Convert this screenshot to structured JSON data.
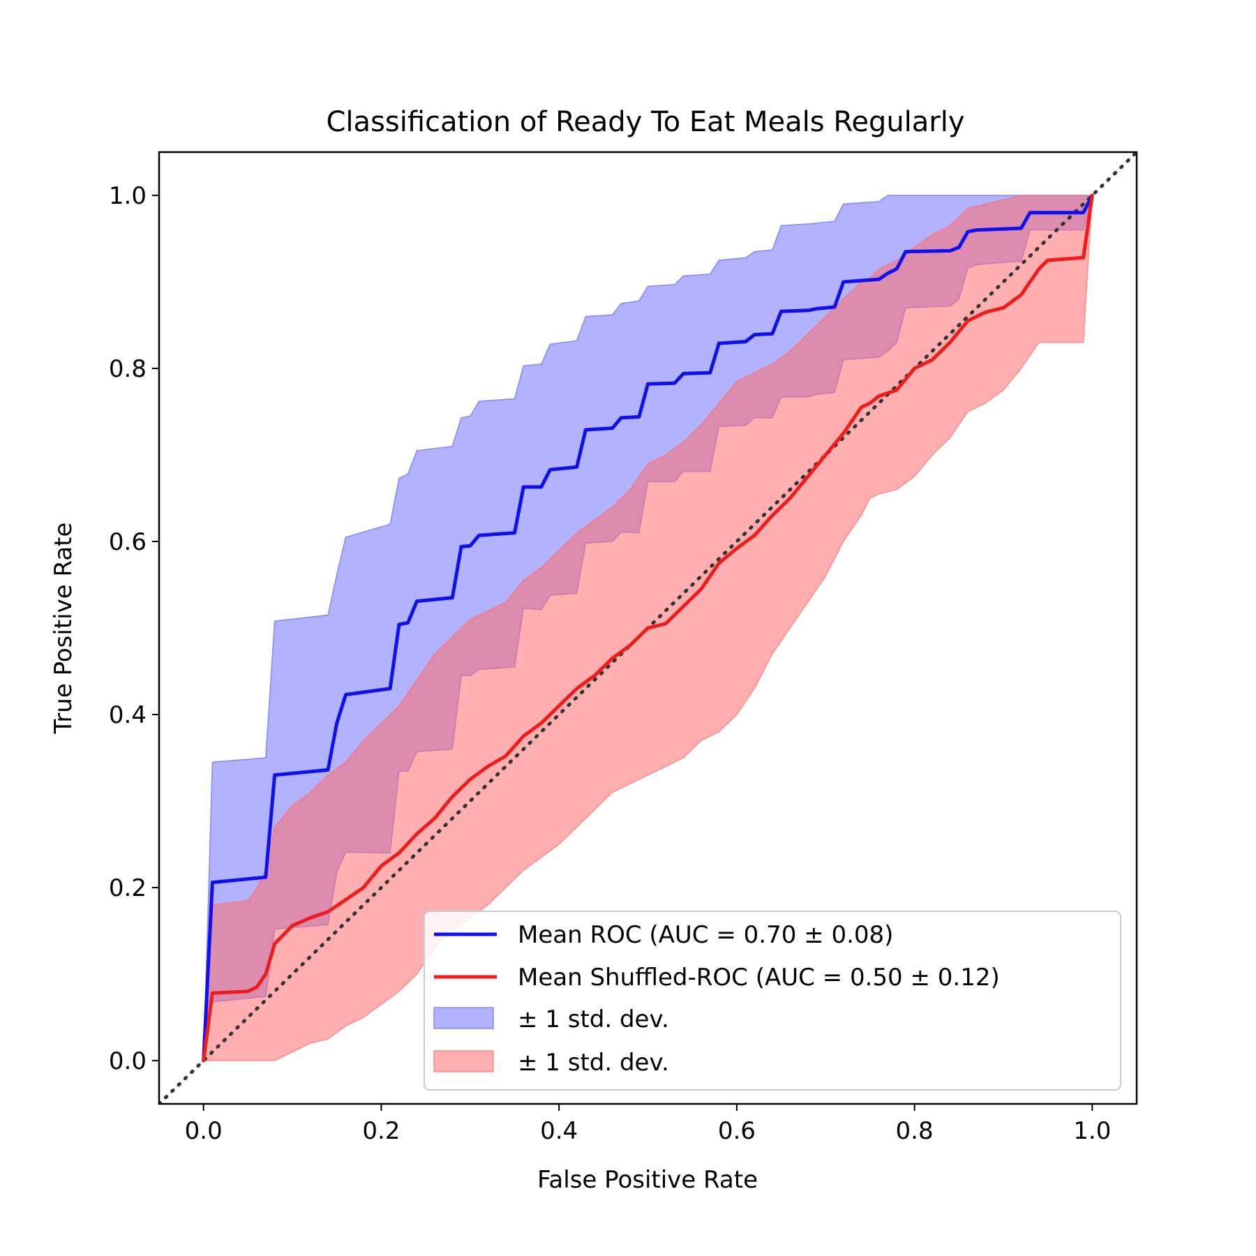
{
  "chart_data": {
    "type": "line",
    "title": "Classification of Ready To Eat Meals Regularly",
    "xlabel": "False Positive Rate",
    "ylabel": "True Positive Rate",
    "xlim": [
      -0.05,
      1.05
    ],
    "ylim": [
      -0.05,
      1.05
    ],
    "xticks": [
      0.0,
      0.2,
      0.4,
      0.6,
      0.8,
      1.0
    ],
    "yticks": [
      0.0,
      0.2,
      0.4,
      0.6,
      0.8,
      1.0
    ],
    "tick_labels": [
      "0.0",
      "0.2",
      "0.4",
      "0.6",
      "0.8",
      "1.0"
    ],
    "legend_position": "lower-right",
    "colors": {
      "roc": "#1010ee",
      "roc_band": "#6666ff",
      "shuffled": "#ee1c1c",
      "shuffled_band": "#ff6e6e",
      "chance": "#333333"
    },
    "series": [
      {
        "name": "Mean ROC (AUC = 0.70 ± 0.08)",
        "x": [
          0.0,
          0.01,
          0.07,
          0.08,
          0.14,
          0.15,
          0.16,
          0.21,
          0.22,
          0.23,
          0.24,
          0.28,
          0.29,
          0.3,
          0.31,
          0.35,
          0.36,
          0.38,
          0.39,
          0.42,
          0.43,
          0.46,
          0.47,
          0.49,
          0.5,
          0.53,
          0.54,
          0.57,
          0.58,
          0.61,
          0.62,
          0.64,
          0.65,
          0.68,
          0.69,
          0.71,
          0.72,
          0.76,
          0.77,
          0.78,
          0.79,
          0.84,
          0.85,
          0.86,
          0.87,
          0.92,
          0.93,
          0.99,
          1.0
        ],
        "y": [
          0.0,
          0.206,
          0.212,
          0.33,
          0.336,
          0.39,
          0.423,
          0.43,
          0.504,
          0.506,
          0.531,
          0.535,
          0.594,
          0.595,
          0.607,
          0.61,
          0.663,
          0.663,
          0.683,
          0.686,
          0.729,
          0.731,
          0.743,
          0.744,
          0.782,
          0.783,
          0.794,
          0.795,
          0.829,
          0.831,
          0.839,
          0.84,
          0.866,
          0.867,
          0.869,
          0.871,
          0.9,
          0.903,
          0.91,
          0.915,
          0.935,
          0.936,
          0.94,
          0.958,
          0.96,
          0.962,
          0.98,
          0.98,
          1.0
        ]
      },
      {
        "name": "Mean Shuffled-ROC (AUC = 0.50 ± 0.12)",
        "x": [
          0.0,
          0.01,
          0.05,
          0.06,
          0.07,
          0.08,
          0.1,
          0.12,
          0.14,
          0.16,
          0.18,
          0.2,
          0.22,
          0.24,
          0.26,
          0.28,
          0.3,
          0.32,
          0.34,
          0.36,
          0.38,
          0.4,
          0.42,
          0.44,
          0.46,
          0.48,
          0.5,
          0.52,
          0.54,
          0.56,
          0.58,
          0.6,
          0.62,
          0.64,
          0.66,
          0.68,
          0.7,
          0.72,
          0.74,
          0.75,
          0.76,
          0.78,
          0.8,
          0.82,
          0.84,
          0.86,
          0.88,
          0.9,
          0.92,
          0.94,
          0.95,
          0.99,
          1.0
        ],
        "y": [
          0.0,
          0.078,
          0.08,
          0.085,
          0.1,
          0.135,
          0.156,
          0.165,
          0.172,
          0.186,
          0.2,
          0.225,
          0.24,
          0.262,
          0.28,
          0.305,
          0.325,
          0.34,
          0.352,
          0.375,
          0.39,
          0.41,
          0.43,
          0.445,
          0.465,
          0.48,
          0.5,
          0.505,
          0.525,
          0.545,
          0.575,
          0.592,
          0.607,
          0.63,
          0.65,
          0.675,
          0.7,
          0.725,
          0.755,
          0.76,
          0.768,
          0.775,
          0.8,
          0.81,
          0.83,
          0.855,
          0.865,
          0.87,
          0.885,
          0.915,
          0.925,
          0.928,
          1.0
        ]
      }
    ],
    "bands": [
      {
        "name": "± 1 std. dev.",
        "of": "Mean ROC (AUC = 0.70 ± 0.08)",
        "x": [
          0.0,
          0.01,
          0.07,
          0.08,
          0.14,
          0.15,
          0.16,
          0.21,
          0.22,
          0.23,
          0.24,
          0.28,
          0.29,
          0.3,
          0.31,
          0.35,
          0.36,
          0.38,
          0.39,
          0.42,
          0.43,
          0.46,
          0.47,
          0.49,
          0.5,
          0.53,
          0.54,
          0.57,
          0.58,
          0.61,
          0.62,
          0.64,
          0.65,
          0.68,
          0.69,
          0.71,
          0.72,
          0.76,
          0.77,
          0.78,
          0.79,
          0.84,
          0.85,
          0.86,
          0.87,
          0.92,
          0.93,
          0.99,
          1.0
        ],
        "upper": [
          0.0,
          0.345,
          0.35,
          0.508,
          0.515,
          0.562,
          0.605,
          0.62,
          0.673,
          0.678,
          0.705,
          0.71,
          0.743,
          0.745,
          0.762,
          0.765,
          0.803,
          0.805,
          0.828,
          0.832,
          0.86,
          0.862,
          0.875,
          0.878,
          0.895,
          0.897,
          0.907,
          0.909,
          0.925,
          0.928,
          0.935,
          0.937,
          0.965,
          0.967,
          0.968,
          0.97,
          0.99,
          0.993,
          1.0,
          1.0,
          1.0,
          1.0,
          1.0,
          1.0,
          1.0,
          1.0,
          1.0,
          1.0,
          1.0
        ],
        "lower": [
          0.0,
          0.068,
          0.074,
          0.152,
          0.157,
          0.218,
          0.241,
          0.24,
          0.335,
          0.334,
          0.357,
          0.36,
          0.445,
          0.445,
          0.452,
          0.455,
          0.523,
          0.521,
          0.538,
          0.54,
          0.598,
          0.6,
          0.611,
          0.61,
          0.669,
          0.669,
          0.681,
          0.681,
          0.733,
          0.734,
          0.743,
          0.743,
          0.767,
          0.767,
          0.77,
          0.772,
          0.81,
          0.813,
          0.82,
          0.83,
          0.87,
          0.872,
          0.88,
          0.916,
          0.92,
          0.924,
          0.96,
          0.96,
          1.0
        ]
      },
      {
        "name": "± 1 std. dev.",
        "of": "Mean Shuffled-ROC (AUC = 0.50 ± 0.12)",
        "x": [
          0.0,
          0.01,
          0.05,
          0.06,
          0.07,
          0.08,
          0.1,
          0.12,
          0.14,
          0.16,
          0.18,
          0.2,
          0.22,
          0.24,
          0.26,
          0.28,
          0.3,
          0.32,
          0.34,
          0.36,
          0.38,
          0.4,
          0.42,
          0.44,
          0.46,
          0.48,
          0.5,
          0.52,
          0.54,
          0.56,
          0.58,
          0.6,
          0.62,
          0.64,
          0.66,
          0.68,
          0.7,
          0.72,
          0.74,
          0.75,
          0.76,
          0.78,
          0.8,
          0.82,
          0.84,
          0.86,
          0.88,
          0.9,
          0.92,
          0.94,
          0.95,
          0.99,
          1.0
        ],
        "upper": [
          0.0,
          0.18,
          0.185,
          0.2,
          0.22,
          0.27,
          0.295,
          0.31,
          0.33,
          0.345,
          0.37,
          0.39,
          0.41,
          0.44,
          0.47,
          0.49,
          0.51,
          0.52,
          0.53,
          0.555,
          0.57,
          0.59,
          0.61,
          0.625,
          0.64,
          0.66,
          0.69,
          0.7,
          0.715,
          0.735,
          0.76,
          0.785,
          0.795,
          0.805,
          0.82,
          0.84,
          0.86,
          0.88,
          0.9,
          0.905,
          0.915,
          0.925,
          0.94,
          0.955,
          0.965,
          0.985,
          0.99,
          0.995,
          1.0,
          1.0,
          1.0,
          1.0,
          1.0
        ],
        "lower": [
          0.0,
          0.0,
          0.0,
          0.0,
          0.0,
          0.0,
          0.01,
          0.02,
          0.025,
          0.04,
          0.05,
          0.065,
          0.08,
          0.1,
          0.13,
          0.15,
          0.165,
          0.18,
          0.2,
          0.22,
          0.235,
          0.25,
          0.27,
          0.29,
          0.31,
          0.32,
          0.33,
          0.34,
          0.35,
          0.37,
          0.38,
          0.4,
          0.43,
          0.47,
          0.5,
          0.53,
          0.56,
          0.6,
          0.63,
          0.65,
          0.655,
          0.66,
          0.675,
          0.7,
          0.72,
          0.75,
          0.76,
          0.775,
          0.8,
          0.83,
          0.83,
          0.83,
          1.0
        ]
      }
    ],
    "reference_line": {
      "name": "chance",
      "x": [
        -0.05,
        1.05
      ],
      "y": [
        -0.05,
        1.05
      ],
      "style": "dotted"
    }
  }
}
